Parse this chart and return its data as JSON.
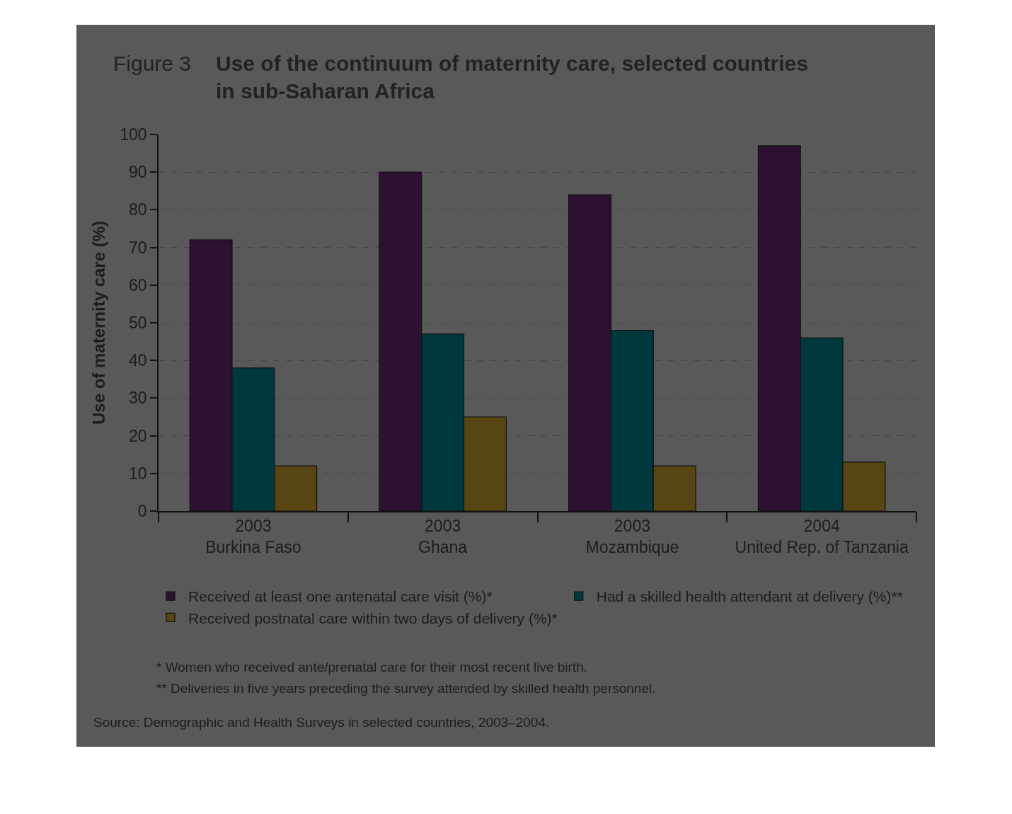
{
  "chart_data": {
    "type": "bar",
    "title": "Use of the continuum of maternity care, selected countries\nin sub-Saharan Africa",
    "ylabel": "Use of maternity care (%)",
    "categories": [
      "2003\nBurkina Faso",
      "2003\nGhana",
      "2003\nMozambique",
      "2004\nUnited Rep. of Tanzania"
    ],
    "series": [
      {
        "name": "Received at least one antenatal care visit (%)*",
        "color": "#2c1230",
        "values": [
          72,
          90,
          84,
          97
        ]
      },
      {
        "name": "Had a skilled health attendant at delivery (%)**",
        "color": "#00393d",
        "values": [
          38,
          47,
          48,
          46
        ]
      },
      {
        "name": "Received postnatal care within two days of delivery (%)*",
        "color": "#574513",
        "values": [
          12,
          25,
          12,
          13
        ]
      }
    ],
    "ylim": [
      0,
      100
    ],
    "yticks": [
      0,
      10,
      20,
      30,
      40,
      50,
      60,
      70,
      80,
      90,
      100
    ],
    "grid": "y",
    "legend": "bottom",
    "annotations": [
      "Figure 3",
      "* Women who received ante/prenatal care for their most recent live birth.",
      "** Deliveries in five years preceding the survey attended by skilled health personnel.",
      "Source: Demographic and Health Surveys in selected countries, 2003–2004."
    ]
  }
}
